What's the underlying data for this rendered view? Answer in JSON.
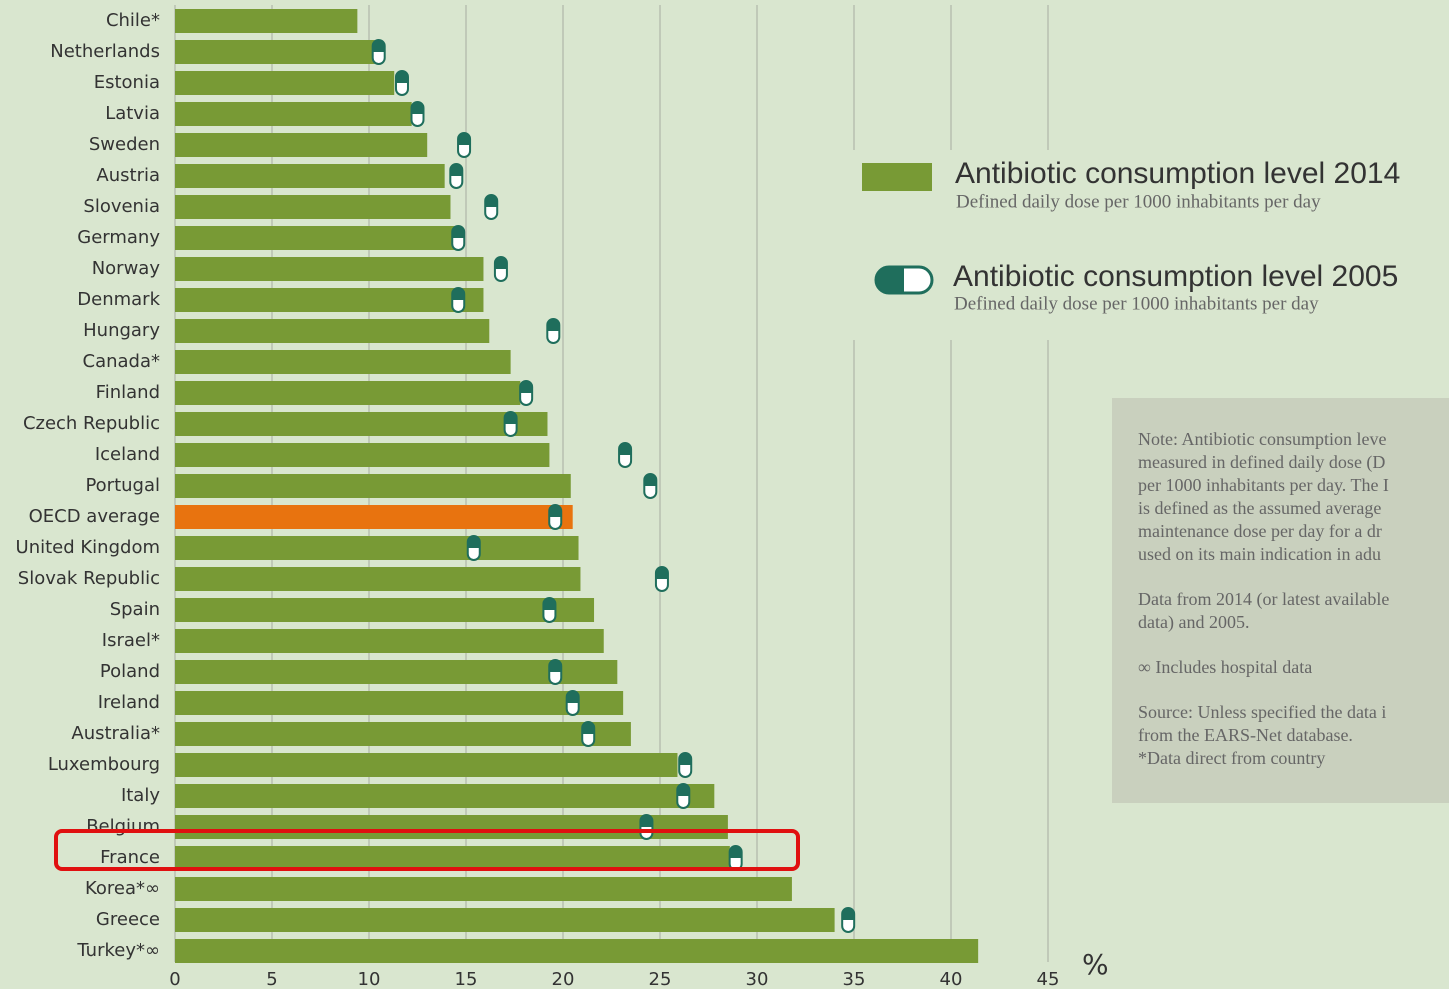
{
  "chart_data": {
    "type": "bar",
    "orientation": "horizontal",
    "categories": [
      "Chile*",
      "Netherlands",
      "Estonia",
      "Latvia",
      "Sweden",
      "Austria",
      "Slovenia",
      "Germany",
      "Norway",
      "Denmark",
      "Hungary",
      "Canada*",
      "Finland",
      "Czech Republic",
      "Iceland",
      "Portugal",
      "OECD average",
      "United Kingdom",
      "Slovak Republic",
      "Spain",
      "Israel*",
      "Poland",
      "Ireland",
      "Australia*",
      "Luxembourg",
      "Italy",
      "Belgium",
      "France",
      "Korea*∞",
      "Greece",
      "Turkey*∞"
    ],
    "series": [
      {
        "name": "Antibiotic consumption level 2014",
        "color": "#789a35",
        "point_colors": [
          "#789a35",
          "#789a35",
          "#789a35",
          "#789a35",
          "#789a35",
          "#789a35",
          "#789a35",
          "#789a35",
          "#789a35",
          "#789a35",
          "#789a35",
          "#789a35",
          "#789a35",
          "#789a35",
          "#789a35",
          "#789a35",
          "#e8730f",
          "#789a35",
          "#789a35",
          "#789a35",
          "#789a35",
          "#789a35",
          "#789a35",
          "#789a35",
          "#789a35",
          "#789a35",
          "#789a35",
          "#789a35",
          "#789a35",
          "#789a35",
          "#789a35"
        ],
        "values": [
          9.4,
          10.3,
          11.3,
          12.2,
          13.0,
          13.9,
          14.2,
          14.5,
          15.9,
          15.9,
          16.2,
          17.3,
          17.8,
          19.2,
          19.3,
          20.4,
          20.5,
          20.8,
          20.9,
          21.6,
          22.1,
          22.8,
          23.1,
          23.5,
          25.9,
          27.8,
          28.5,
          28.6,
          31.8,
          34.0,
          41.4
        ]
      },
      {
        "name": "Antibiotic consumption level 2005",
        "color": "#1f6e5c",
        "marker": "pill",
        "values": [
          null,
          10.5,
          11.7,
          12.5,
          14.9,
          14.5,
          16.3,
          14.6,
          16.8,
          14.6,
          19.5,
          null,
          18.1,
          17.3,
          23.2,
          24.5,
          19.6,
          15.4,
          25.1,
          19.3,
          null,
          19.6,
          20.5,
          21.3,
          26.3,
          26.2,
          24.3,
          28.9,
          null,
          34.7,
          null
        ]
      }
    ],
    "legend_subtitle": "Defined daily dose per 1000 inhabitants per day",
    "x_label": "%",
    "xlim": [
      0,
      45
    ],
    "xticks": [
      0,
      5,
      10,
      15,
      20,
      25,
      30,
      35,
      40,
      45
    ],
    "grid": true,
    "note": {
      "paragraphs": [
        [
          "Note: Antibiotic consumption leve",
          "measured in defined daily dose (D",
          "per 1000 inhabitants per day. The I",
          "is defined as the assumed average",
          "maintenance dose per day for a dr",
          "used on its main indication in adu"
        ],
        [
          "Data from 2014 (or latest available",
          "data) and 2005."
        ],
        [
          "∞ Includes hospital data"
        ],
        [
          "Source: Unless specified the data i",
          "from the EARS-Net database.",
          "*Data direct from country"
        ]
      ]
    }
  }
}
